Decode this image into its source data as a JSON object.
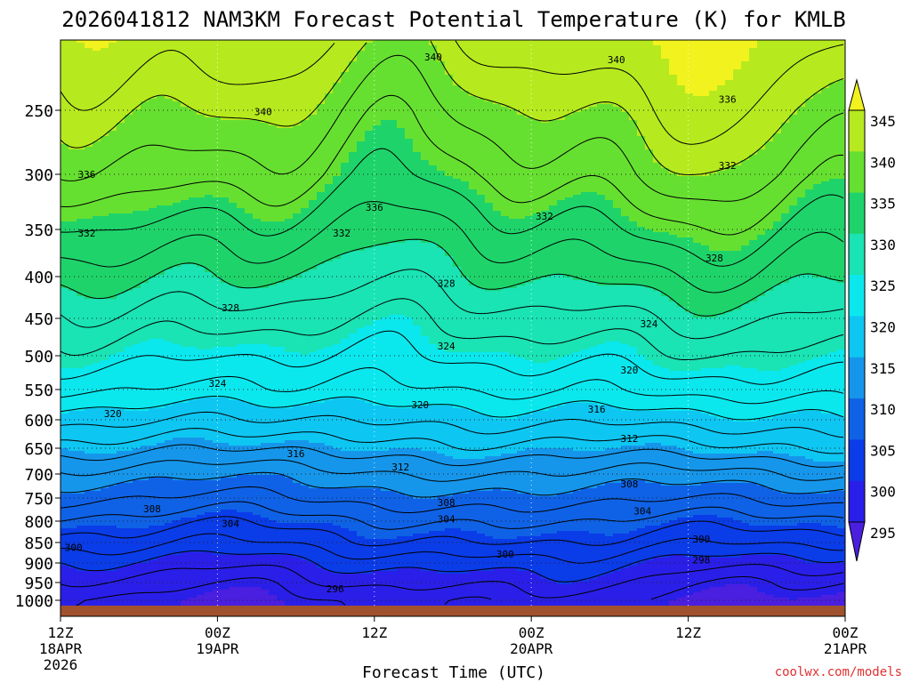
{
  "chart_data": {
    "type": "heatmap",
    "title": "2026041812 NAM3KM Forecast Potential Temperature (K) for KMLB",
    "xlabel": "Forecast Time (UTC)",
    "ylabel": "",
    "credit": "coolwx.com/models",
    "x_ticks": [
      {
        "label": "12Z",
        "label2": "18APR",
        "label3": "2026",
        "hour": 0
      },
      {
        "label": "00Z",
        "label2": "19APR",
        "label3": "",
        "hour": 12
      },
      {
        "label": "12Z",
        "label2": "",
        "label3": "",
        "hour": 24
      },
      {
        "label": "00Z",
        "label2": "20APR",
        "label3": "",
        "hour": 36
      },
      {
        "label": "12Z",
        "label2": "",
        "label3": "",
        "hour": 48
      },
      {
        "label": "00Z",
        "label2": "21APR",
        "label3": "",
        "hour": 60
      }
    ],
    "xlim_hours": [
      0,
      60
    ],
    "y_ticks": [
      "250",
      "300",
      "350",
      "400",
      "450",
      "500",
      "550",
      "600",
      "650",
      "700",
      "750",
      "800",
      "850",
      "900",
      "950",
      "1000"
    ],
    "y_tick_values": [
      250,
      300,
      350,
      400,
      450,
      500,
      550,
      600,
      650,
      700,
      750,
      800,
      850,
      900,
      950,
      1000
    ],
    "ylim_hPa": [
      200,
      1000
    ],
    "colorbar": {
      "labels": [
        "345",
        "340",
        "335",
        "330",
        "325",
        "320",
        "315",
        "310",
        "305",
        "300",
        "295"
      ],
      "bins": [
        {
          "lo": 290,
          "hi": 295,
          "color": "#4a1fe0"
        },
        {
          "lo": 295,
          "hi": 300,
          "color": "#2a1fe8"
        },
        {
          "lo": 300,
          "hi": 305,
          "color": "#0a3ce8"
        },
        {
          "lo": 305,
          "hi": 310,
          "color": "#0f62e6"
        },
        {
          "lo": 310,
          "hi": 315,
          "color": "#1696ea"
        },
        {
          "lo": 315,
          "hi": 320,
          "color": "#0ec6f2"
        },
        {
          "lo": 320,
          "hi": 325,
          "color": "#0ae8ee"
        },
        {
          "lo": 325,
          "hi": 330,
          "color": "#1ae3b4"
        },
        {
          "lo": 330,
          "hi": 335,
          "color": "#1ed46a"
        },
        {
          "lo": 335,
          "hi": 340,
          "color": "#66e030"
        },
        {
          "lo": 340,
          "hi": 345,
          "color": "#b6ea1e"
        },
        {
          "lo": 345,
          "hi": 350,
          "color": "#f2f21e"
        }
      ]
    },
    "field_profile": {
      "p_hPa": [
        200,
        250,
        300,
        350,
        400,
        450,
        500,
        550,
        600,
        650,
        700,
        750,
        800,
        850,
        900,
        950,
        1000
      ],
      "theta_K": [
        343,
        339.5,
        336.5,
        333,
        330,
        327,
        324.5,
        322,
        318.5,
        315,
        311.5,
        308.5,
        305.5,
        303,
        300,
        297.5,
        295.5
      ]
    },
    "contour_levels": [
      296,
      298,
      300,
      302,
      304,
      306,
      308,
      310,
      312,
      314,
      316,
      318,
      320,
      322,
      324,
      326,
      328,
      330,
      332,
      334,
      336,
      338,
      340,
      342
    ],
    "contour_labels": [
      {
        "text": "340",
        "hour": 28.5,
        "p": 212
      },
      {
        "text": "340",
        "hour": 42.5,
        "p": 214
      },
      {
        "text": "340",
        "hour": 15.5,
        "p": 251
      },
      {
        "text": "336",
        "hour": 51,
        "p": 242
      },
      {
        "text": "336",
        "hour": 2,
        "p": 300
      },
      {
        "text": "332",
        "hour": 51,
        "p": 293
      },
      {
        "text": "336",
        "hour": 24,
        "p": 330
      },
      {
        "text": "332",
        "hour": 37,
        "p": 338
      },
      {
        "text": "332",
        "hour": 2,
        "p": 354
      },
      {
        "text": "332",
        "hour": 21.5,
        "p": 354
      },
      {
        "text": "328",
        "hour": 50,
        "p": 380
      },
      {
        "text": "328",
        "hour": 29.5,
        "p": 408
      },
      {
        "text": "328",
        "hour": 13,
        "p": 437
      },
      {
        "text": "324",
        "hour": 45,
        "p": 457
      },
      {
        "text": "324",
        "hour": 29.5,
        "p": 487
      },
      {
        "text": "324",
        "hour": 12,
        "p": 541
      },
      {
        "text": "320",
        "hour": 43.5,
        "p": 521
      },
      {
        "text": "320",
        "hour": 27.5,
        "p": 575
      },
      {
        "text": "320",
        "hour": 4,
        "p": 590
      },
      {
        "text": "316",
        "hour": 41,
        "p": 582
      },
      {
        "text": "316",
        "hour": 18,
        "p": 660
      },
      {
        "text": "312",
        "hour": 43.5,
        "p": 633
      },
      {
        "text": "312",
        "hour": 26,
        "p": 686
      },
      {
        "text": "308",
        "hour": 43.5,
        "p": 720
      },
      {
        "text": "308",
        "hour": 29.5,
        "p": 760
      },
      {
        "text": "308",
        "hour": 7,
        "p": 773
      },
      {
        "text": "304",
        "hour": 29.5,
        "p": 795
      },
      {
        "text": "304",
        "hour": 44.5,
        "p": 778
      },
      {
        "text": "304",
        "hour": 13,
        "p": 805
      },
      {
        "text": "300",
        "hour": 49,
        "p": 842
      },
      {
        "text": "300",
        "hour": 34,
        "p": 878
      },
      {
        "text": "300",
        "hour": 1,
        "p": 862
      },
      {
        "text": "298",
        "hour": 49,
        "p": 892
      },
      {
        "text": "296",
        "hour": 21,
        "p": 967
      }
    ]
  }
}
